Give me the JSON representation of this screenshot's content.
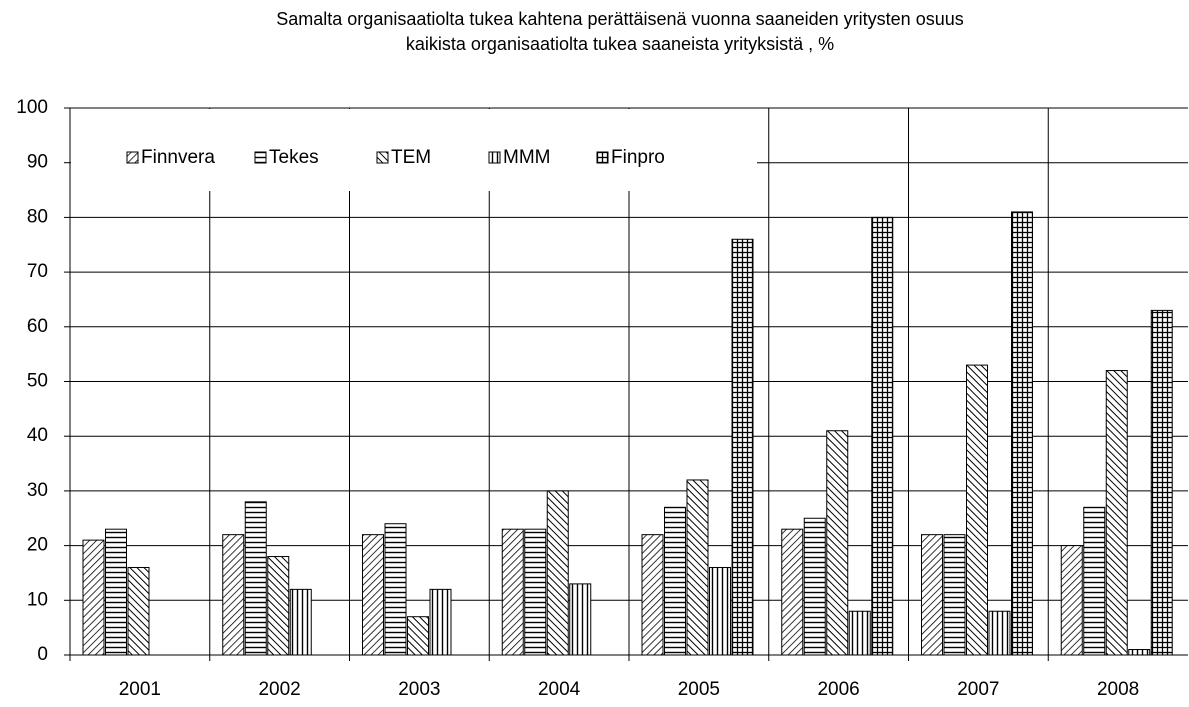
{
  "chart_data": {
    "type": "bar",
    "title": [
      "Samalta organisaatiolta tukea kahtena perättäisenä vuonna saaneiden yritysten osuus",
      "kaikista organisaatiolta tukea saaneista yrityksistä , %"
    ],
    "categories": [
      "2001",
      "2002",
      "2003",
      "2004",
      "2005",
      "2006",
      "2007",
      "2008"
    ],
    "series": [
      {
        "name": "Finnvera",
        "color": "#000000",
        "pattern": "diagonal-up",
        "values": [
          21,
          22,
          22,
          23,
          22,
          23,
          22,
          20
        ]
      },
      {
        "name": "Tekes",
        "color": "#000000",
        "pattern": "horizontal",
        "values": [
          23,
          28,
          24,
          23,
          27,
          25,
          22,
          27
        ]
      },
      {
        "name": "TEM",
        "color": "#000000",
        "pattern": "diagonal-down",
        "values": [
          16,
          18,
          7,
          30,
          32,
          41,
          53,
          52
        ]
      },
      {
        "name": "MMM",
        "color": "#000000",
        "pattern": "vertical",
        "values": [
          null,
          12,
          12,
          13,
          16,
          8,
          8,
          1
        ]
      },
      {
        "name": "Finpro",
        "color": "#000000",
        "pattern": "cross",
        "values": [
          null,
          null,
          null,
          null,
          76,
          80,
          81,
          63
        ]
      }
    ],
    "ylim": [
      0,
      100
    ],
    "yticks": [
      0,
      10,
      20,
      30,
      40,
      50,
      60,
      70,
      80,
      90,
      100
    ],
    "grid": true,
    "legend": "top-left"
  }
}
